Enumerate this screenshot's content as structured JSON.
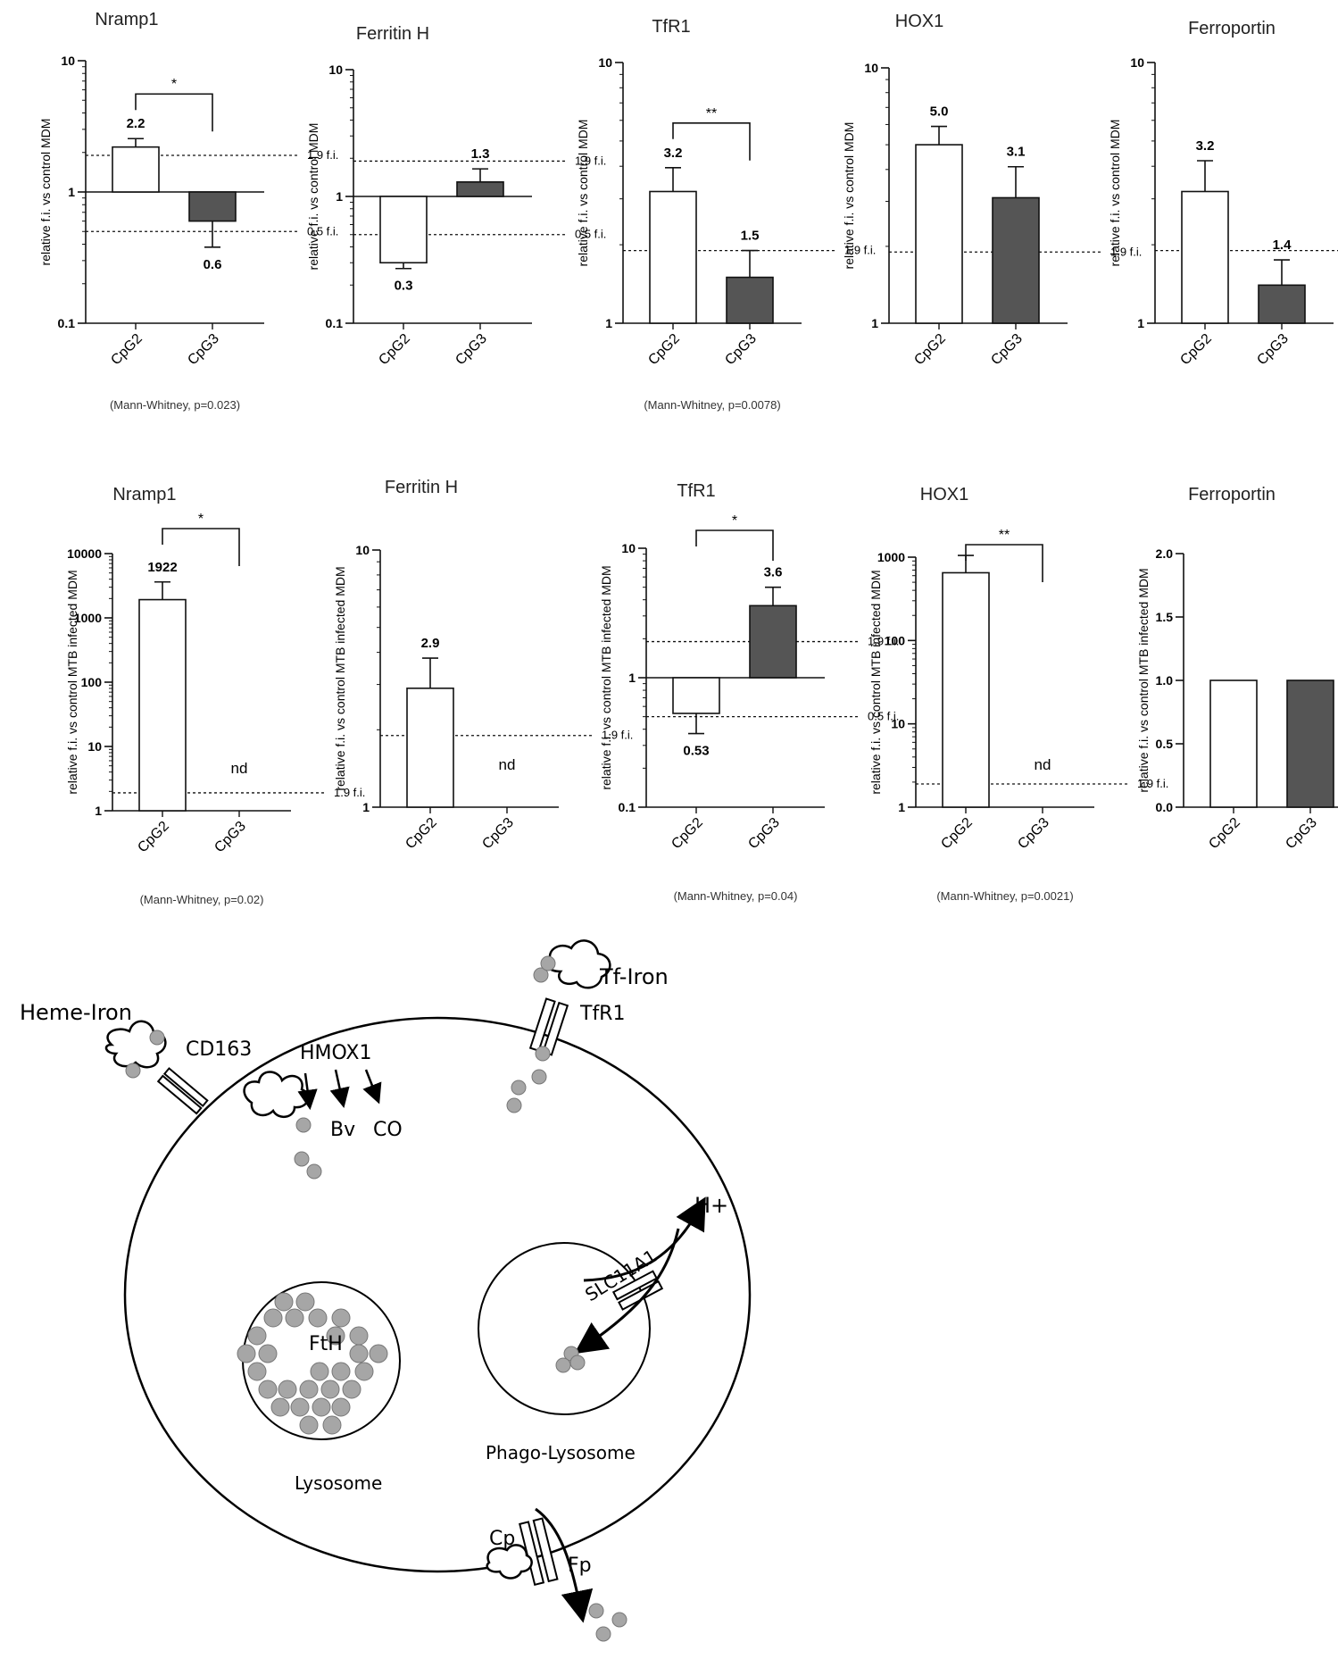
{
  "chart_data": [
    {
      "type": "bar",
      "title": "Nramp1",
      "ylabel": "relative f.i. vs control MDM",
      "scale": "log",
      "ylim": [
        0.1,
        10
      ],
      "yticks": [
        {
          "v": 0.1,
          "t": "0.1"
        },
        {
          "v": 1,
          "t": "1"
        },
        {
          "v": 10,
          "t": "10"
        }
      ],
      "categories": [
        "CpG2",
        "CpG3"
      ],
      "values": [
        2.2,
        0.6
      ],
      "errors": [
        0.35,
        0.22
      ],
      "labels": [
        "2.2",
        "0.6"
      ],
      "baseline": 1,
      "refs": [
        {
          "v": 1.9,
          "t": "1.9  f.i."
        },
        {
          "v": 0.5,
          "t": "0.5  f.i."
        }
      ],
      "sig": "*",
      "note": "(Mann-Whitney, p=0.023)"
    },
    {
      "type": "bar",
      "title": "Ferritin H",
      "ylabel": "relative f.i. vs control MDM",
      "scale": "log",
      "ylim": [
        0.1,
        10
      ],
      "yticks": [
        {
          "v": 0.1,
          "t": "0.1"
        },
        {
          "v": 1,
          "t": "1"
        },
        {
          "v": 10,
          "t": "10"
        }
      ],
      "categories": [
        "CpG2",
        "CpG3"
      ],
      "values": [
        0.3,
        1.3
      ],
      "errors": [
        0.03,
        0.35
      ],
      "labels": [
        "0.3",
        "1.3"
      ],
      "baseline": 1,
      "refs": [
        {
          "v": 1.9,
          "t": "1.9  f.i."
        },
        {
          "v": 0.5,
          "t": "0.5  f.i."
        }
      ],
      "sig": "",
      "note": ""
    },
    {
      "type": "bar",
      "title": "TfR1",
      "ylabel": "relative f.i. vs control MDM",
      "scale": "log",
      "ylim": [
        1,
        10
      ],
      "yticks": [
        {
          "v": 1,
          "t": "1"
        },
        {
          "v": 10,
          "t": "10"
        }
      ],
      "categories": [
        "CpG2",
        "CpG3"
      ],
      "values": [
        3.2,
        1.5
      ],
      "errors": [
        0.75,
        0.4
      ],
      "labels": [
        "3.2",
        "1.5"
      ],
      "baseline": 1,
      "refs": [
        {
          "v": 1.9,
          "t": "1.9  f.i."
        }
      ],
      "sig": "**",
      "note": "(Mann-Whitney, p=0.0078)"
    },
    {
      "type": "bar",
      "title": "HOX1",
      "ylabel": "relative f.i. vs control MDM",
      "scale": "log",
      "ylim": [
        1,
        10
      ],
      "yticks": [
        {
          "v": 1,
          "t": "1"
        },
        {
          "v": 10,
          "t": "10"
        }
      ],
      "categories": [
        "CpG2",
        "CpG3"
      ],
      "values": [
        5.0,
        3.1
      ],
      "errors": [
        0.9,
        1.0
      ],
      "labels": [
        "5.0",
        "3.1"
      ],
      "baseline": 1,
      "refs": [
        {
          "v": 1.9,
          "t": "1.9  f.i."
        }
      ],
      "sig": "",
      "note": ""
    },
    {
      "type": "bar",
      "title": "Ferroportin",
      "ylabel": "relative f.i. vs control MDM",
      "scale": "log",
      "ylim": [
        1,
        10
      ],
      "yticks": [
        {
          "v": 1,
          "t": "1"
        },
        {
          "v": 10,
          "t": "10"
        }
      ],
      "categories": [
        "CpG2",
        "CpG3"
      ],
      "values": [
        3.2,
        1.4
      ],
      "errors": [
        1.0,
        0.35
      ],
      "labels": [
        "3.2",
        "1.4"
      ],
      "baseline": 1,
      "refs": [
        {
          "v": 1.9,
          "t": "1.9  f.i."
        }
      ],
      "sig": "",
      "note": ""
    },
    {
      "type": "bar",
      "title": "Nramp1",
      "ylabel": "relative f.i. vs control MTB infected MDM",
      "scale": "log",
      "ylim": [
        1,
        10000
      ],
      "yticks": [
        {
          "v": 1,
          "t": "1"
        },
        {
          "v": 10,
          "t": "10"
        },
        {
          "v": 100,
          "t": "100"
        },
        {
          "v": 1000,
          "t": "1000"
        },
        {
          "v": 10000,
          "t": "10000"
        }
      ],
      "categories": [
        "CpG2",
        "CpG3"
      ],
      "values": [
        1922,
        null
      ],
      "errors": [
        1700,
        null
      ],
      "labels": [
        "1922",
        "nd"
      ],
      "baseline": 1,
      "refs": [
        {
          "v": 1.9,
          "t": "1.9  f.i."
        }
      ],
      "sig": "*",
      "note": "(Mann-Whitney, p=0.02)"
    },
    {
      "type": "bar",
      "title": "Ferritin H",
      "ylabel": "relative f.i. vs control MTB infected MDM",
      "scale": "log",
      "ylim": [
        1,
        10
      ],
      "yticks": [
        {
          "v": 1,
          "t": "1"
        },
        {
          "v": 10,
          "t": "10"
        }
      ],
      "categories": [
        "CpG2",
        "CpG3"
      ],
      "values": [
        2.9,
        null
      ],
      "errors": [
        0.9,
        null
      ],
      "labels": [
        "2.9",
        "nd"
      ],
      "baseline": 1,
      "refs": [
        {
          "v": 1.9,
          "t": "1.9  f.i."
        }
      ],
      "sig": "",
      "note": ""
    },
    {
      "type": "bar",
      "title": "TfR1",
      "ylabel": "relative f.i. vs control MTB infected MDM",
      "scale": "log",
      "ylim": [
        0.1,
        10
      ],
      "yticks": [
        {
          "v": 0.1,
          "t": "0.1"
        },
        {
          "v": 1,
          "t": "1"
        },
        {
          "v": 10,
          "t": "10"
        }
      ],
      "categories": [
        "CpG2",
        "CpG3"
      ],
      "values": [
        0.53,
        3.6
      ],
      "errors": [
        0.16,
        1.4
      ],
      "labels": [
        "0.53",
        "3.6"
      ],
      "baseline": 1,
      "refs": [
        {
          "v": 1.9,
          "t": "1.9  f.i."
        },
        {
          "v": 0.5,
          "t": "0.5  f.i."
        }
      ],
      "sig": "*",
      "note": "(Mann-Whitney, p=0.04)"
    },
    {
      "type": "bar",
      "title": "HOX1",
      "ylabel": "relative f.i. vs control MTB  infected MDM",
      "scale": "log",
      "ylim": [
        1,
        1000
      ],
      "yticks": [
        {
          "v": 1,
          "t": "1"
        },
        {
          "v": 10,
          "t": "10"
        },
        {
          "v": 100,
          "t": "100"
        },
        {
          "v": 1000,
          "t": "1000"
        }
      ],
      "categories": [
        "CpG2",
        "CpG3"
      ],
      "values": [
        650,
        null
      ],
      "errors": [
        400,
        null
      ],
      "labels": [
        "",
        "nd"
      ],
      "baseline": 1,
      "refs": [
        {
          "v": 1.9,
          "t": "1.9  f.i."
        }
      ],
      "sig": "**",
      "note": "(Mann-Whitney, p=0.0021)"
    },
    {
      "type": "bar",
      "title": "Ferroportin",
      "ylabel": "relative f.i. vs control MTB infected MDM",
      "scale": "linear",
      "ylim": [
        0,
        2
      ],
      "yticks": [
        {
          "v": 0,
          "t": "0.0"
        },
        {
          "v": 0.5,
          "t": "0.5"
        },
        {
          "v": 1.0,
          "t": "1.0"
        },
        {
          "v": 1.5,
          "t": "1.5"
        },
        {
          "v": 2.0,
          "t": "2.0"
        }
      ],
      "categories": [
        "CpG2",
        "CpG3"
      ],
      "values": [
        1.0,
        1.0
      ],
      "errors": [
        null,
        null
      ],
      "labels": [
        "",
        ""
      ],
      "baseline": 0,
      "refs": [],
      "sig": "",
      "note": ""
    }
  ],
  "diagram": {
    "labels": {
      "heme_iron": "Heme-Iron",
      "cd163": "CD163",
      "hmox1": "HMOX1",
      "bv": "Bv",
      "co": "CO",
      "tf_iron": "Tf-Iron",
      "tfr1": "TfR1",
      "h_plus": "H+",
      "slc11a1": "SLC11A1",
      "fth": "FtH",
      "lysosome": "Lysosome",
      "phago_lysosome": "Phago-Lysosome",
      "cp": "Cp",
      "fp": "Fp"
    }
  },
  "colors": {
    "bar_cpg2": "#ffffff",
    "bar_cpg3": "#555555",
    "axis": "#111111",
    "iron": "#a6a6a6"
  }
}
